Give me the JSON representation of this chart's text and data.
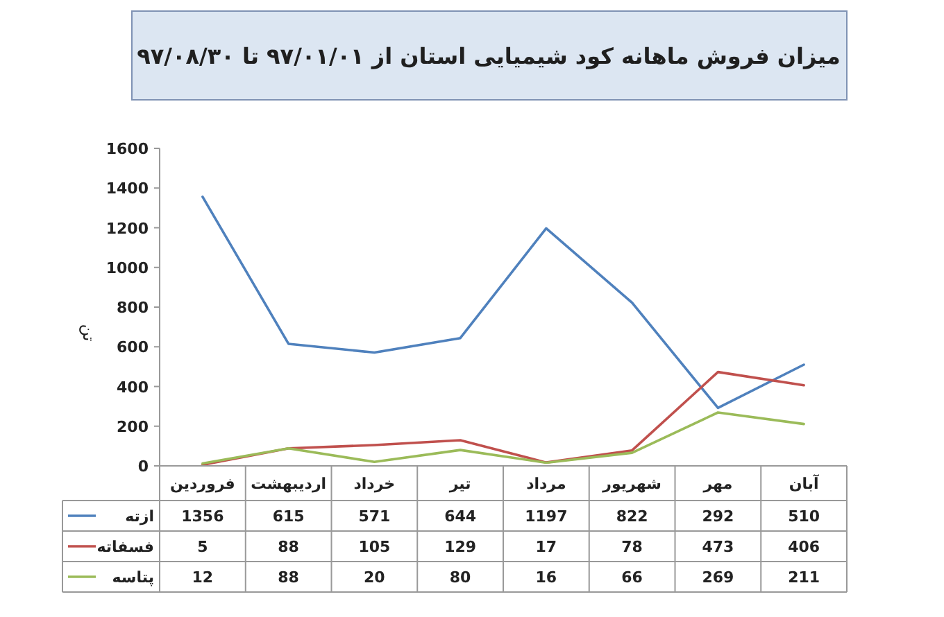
{
  "chart_data": {
    "type": "line",
    "title": "میزان فروش ماهانه کود شیمیایی استان از ۹۷/۰۱/۰۱ تا ۹۷/۰۸/۳۰",
    "ylabel": "تن",
    "categories": [
      "فروردین",
      "اردیبهشت",
      "خرداد",
      "تیر",
      "مرداد",
      "شهریور",
      "مهر",
      "آبان"
    ],
    "series": [
      {
        "name": "ازته",
        "color": "#4f81bd",
        "values": [
          1356,
          615,
          571,
          644,
          1197,
          822,
          292,
          510
        ]
      },
      {
        "name": "فسفاته",
        "color": "#c0504d",
        "values": [
          5,
          88,
          105,
          129,
          17,
          78,
          473,
          406
        ]
      },
      {
        "name": "پتاسه",
        "color": "#9bbb59",
        "values": [
          12,
          88,
          20,
          80,
          16,
          66,
          269,
          211
        ]
      }
    ],
    "ylim": [
      0,
      1600
    ],
    "yticks": [
      0,
      200,
      400,
      600,
      800,
      1000,
      1200,
      1400,
      1600
    ],
    "data_labels": true,
    "legend": "bottom left",
    "marker": "none",
    "line_style": "solid"
  }
}
